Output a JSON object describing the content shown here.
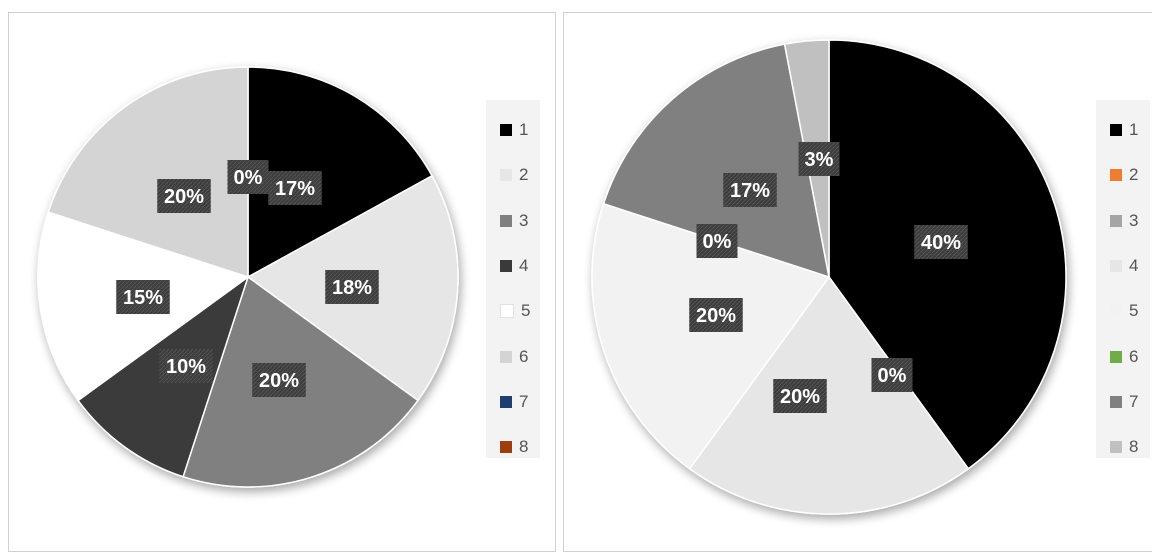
{
  "chart_data": [
    {
      "type": "pie",
      "categories": [
        "1",
        "2",
        "3",
        "4",
        "5",
        "6",
        "7",
        "8"
      ],
      "values": [
        17,
        18,
        20,
        10,
        15,
        20,
        0,
        0
      ],
      "data_labels": [
        "17%",
        "18%",
        "20%",
        "10%",
        "15%",
        "20%",
        "0%",
        "0%"
      ],
      "colors": [
        "#000000",
        "#e6e6e6",
        "#808080",
        "#3a3a3a",
        "#ffffff",
        "#d4d4d4",
        "#1f3f73",
        "#9c3e0d"
      ],
      "legend": "right"
    },
    {
      "type": "pie",
      "categories": [
        "1",
        "2",
        "3",
        "4",
        "5",
        "6",
        "7",
        "8"
      ],
      "values": [
        40,
        0,
        0,
        20,
        20,
        0,
        17,
        3
      ],
      "data_labels": [
        "40%",
        "0%",
        "0%",
        "20%",
        "20%",
        "0%",
        "17%",
        "3%"
      ],
      "colors": [
        "#000000",
        "#ed7d31",
        "#a5a5a5",
        "#e6e6e6",
        "#f2f2f2",
        "#70ad47",
        "#808080",
        "#c0c0c0"
      ],
      "legend": "right"
    }
  ]
}
